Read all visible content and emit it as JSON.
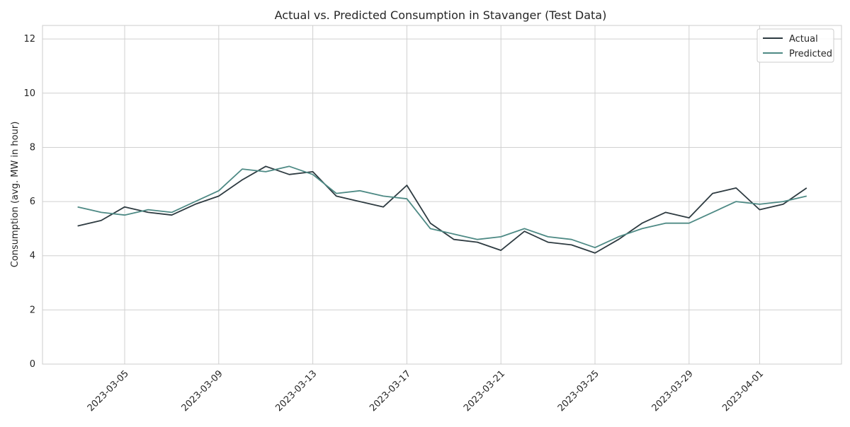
{
  "chart_data": {
    "type": "line",
    "title": "Actual vs. Predicted Consumption in Stavanger (Test Data)",
    "xlabel": "",
    "ylabel": "Consumption (avg. MW in hour)",
    "x_range": [
      "2023-03-03",
      "2023-04-03"
    ],
    "ylim": [
      0,
      12.5
    ],
    "grid": true,
    "legend_position": "top-right",
    "xticks": [
      "2023-03-05",
      "2023-03-09",
      "2023-03-13",
      "2023-03-17",
      "2023-03-21",
      "2023-03-25",
      "2023-03-29",
      "2023-04-01"
    ],
    "yticks": [
      0,
      2,
      4,
      6,
      8,
      10,
      12
    ],
    "series": [
      {
        "name": "Actual",
        "color": "#2e3b41",
        "x": [
          "2023-03-03",
          "2023-03-04",
          "2023-03-05",
          "2023-03-06",
          "2023-03-07",
          "2023-03-08",
          "2023-03-09",
          "2023-03-10",
          "2023-03-11",
          "2023-03-12",
          "2023-03-13",
          "2023-03-14",
          "2023-03-15",
          "2023-03-16",
          "2023-03-17",
          "2023-03-18",
          "2023-03-19",
          "2023-03-20",
          "2023-03-21",
          "2023-03-22",
          "2023-03-23",
          "2023-03-24",
          "2023-03-25",
          "2023-03-26",
          "2023-03-27",
          "2023-03-28",
          "2023-03-29",
          "2023-03-30",
          "2023-03-31",
          "2023-04-01",
          "2023-04-02",
          "2023-04-03"
        ],
        "values": [
          5.1,
          5.3,
          5.8,
          5.6,
          5.5,
          5.9,
          6.2,
          6.8,
          7.3,
          7.0,
          7.1,
          6.2,
          6.0,
          5.8,
          6.6,
          5.2,
          4.6,
          4.5,
          4.2,
          4.9,
          4.5,
          4.4,
          4.1,
          4.6,
          5.2,
          5.6,
          5.4,
          6.3,
          6.5,
          5.7,
          5.9,
          6.5
        ]
      },
      {
        "name": "Predicted",
        "color": "#4e8a85",
        "x": [
          "2023-03-03",
          "2023-03-04",
          "2023-03-05",
          "2023-03-06",
          "2023-03-07",
          "2023-03-08",
          "2023-03-09",
          "2023-03-10",
          "2023-03-11",
          "2023-03-12",
          "2023-03-13",
          "2023-03-14",
          "2023-03-15",
          "2023-03-16",
          "2023-03-17",
          "2023-03-18",
          "2023-03-19",
          "2023-03-20",
          "2023-03-21",
          "2023-03-22",
          "2023-03-23",
          "2023-03-24",
          "2023-03-25",
          "2023-03-26",
          "2023-03-27",
          "2023-03-28",
          "2023-03-29",
          "2023-03-30",
          "2023-03-31",
          "2023-04-01",
          "2023-04-02",
          "2023-04-03"
        ],
        "values": [
          5.8,
          5.6,
          5.5,
          5.7,
          5.6,
          6.0,
          6.4,
          7.2,
          7.1,
          7.3,
          7.0,
          6.3,
          6.4,
          6.2,
          6.1,
          5.0,
          4.8,
          4.6,
          4.7,
          5.0,
          4.7,
          4.6,
          4.3,
          4.7,
          5.0,
          5.2,
          5.2,
          5.6,
          6.0,
          5.9,
          6.0,
          6.2
        ]
      }
    ]
  }
}
